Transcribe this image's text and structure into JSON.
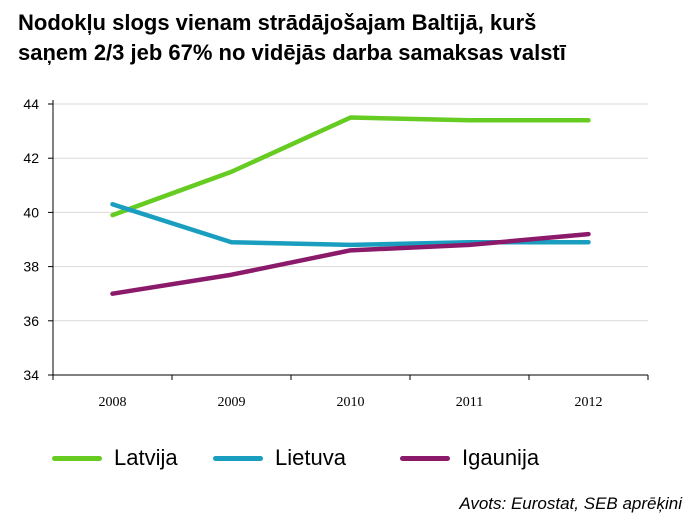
{
  "title": {
    "line1": "Nodokļu slogs vienam strādājošajam Baltijā, kurš",
    "line2": "saņem 2/3 jeb 67% no vidējās darba samaksas valstī"
  },
  "source": "Avots: Eurostat, SEB aprēķini",
  "chart_data": {
    "type": "line",
    "categories": [
      "2008",
      "2009",
      "2010",
      "2011",
      "2012"
    ],
    "ylim": [
      34,
      44
    ],
    "yticks": [
      "34",
      "36",
      "38",
      "40",
      "42",
      "44"
    ],
    "grid": true,
    "legend_position": "bottom",
    "series": [
      {
        "name": "Latvija",
        "color": "#66cc22",
        "values": [
          39.9,
          41.5,
          43.5,
          43.4,
          43.4
        ]
      },
      {
        "name": "Lietuva",
        "color": "#1a9ec0",
        "values": [
          40.3,
          38.9,
          38.8,
          38.9,
          38.9
        ]
      },
      {
        "name": "Igaunija",
        "color": "#8b1a6b",
        "values": [
          37.0,
          37.7,
          38.6,
          38.8,
          39.2
        ]
      }
    ]
  }
}
